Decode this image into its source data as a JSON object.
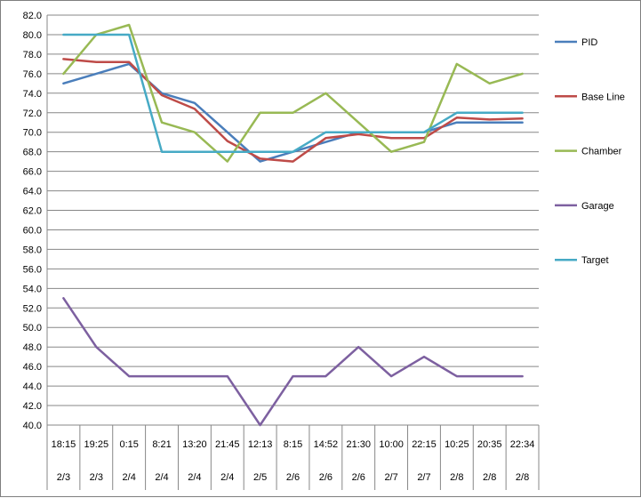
{
  "chart_data": {
    "type": "line",
    "title": "",
    "xlabel": "",
    "ylabel": "",
    "ylim": [
      40,
      82
    ],
    "y_step": 2,
    "grid": "horizontal",
    "legend_position": "right",
    "categories": [
      {
        "time": "18:15",
        "date": "2/3"
      },
      {
        "time": "19:25",
        "date": "2/3"
      },
      {
        "time": "0:15",
        "date": "2/4"
      },
      {
        "time": "8:21",
        "date": "2/4"
      },
      {
        "time": "13:20",
        "date": "2/4"
      },
      {
        "time": "21:45",
        "date": "2/4"
      },
      {
        "time": "12:13",
        "date": "2/5"
      },
      {
        "time": "8:15",
        "date": "2/6"
      },
      {
        "time": "14:52",
        "date": "2/6"
      },
      {
        "time": "21:30",
        "date": "2/6"
      },
      {
        "time": "10:00",
        "date": "2/7"
      },
      {
        "time": "22:15",
        "date": "2/7"
      },
      {
        "time": "10:25",
        "date": "2/8"
      },
      {
        "time": "20:35",
        "date": "2/8"
      },
      {
        "time": "22:34",
        "date": "2/8"
      }
    ],
    "series": [
      {
        "name": "PID",
        "color": "#4a7ebb",
        "values": [
          75,
          76,
          77,
          74,
          73,
          70,
          67,
          68,
          69,
          70,
          70,
          70,
          71,
          71,
          71
        ]
      },
      {
        "name": "Base Line",
        "color": "#be4b48",
        "values": [
          77.5,
          77.2,
          77.2,
          73.8,
          72.4,
          69.1,
          67.3,
          67,
          69.4,
          69.8,
          69.4,
          69.4,
          71.5,
          71.3,
          71.4
        ]
      },
      {
        "name": "Chamber",
        "color": "#98b954",
        "values": [
          76,
          80,
          81,
          71,
          70,
          67,
          72,
          72,
          74,
          71,
          68,
          69,
          77,
          75,
          76
        ]
      },
      {
        "name": "Garage",
        "color": "#7d60a0",
        "values": [
          53,
          48,
          45,
          45,
          45,
          45,
          40,
          45,
          45,
          48,
          45,
          47,
          45,
          45,
          45
        ]
      },
      {
        "name": "Target",
        "color": "#46aac5",
        "values": [
          80,
          80,
          80,
          68,
          68,
          68,
          68,
          68,
          70,
          70,
          70,
          70,
          72,
          72,
          72
        ]
      }
    ]
  }
}
